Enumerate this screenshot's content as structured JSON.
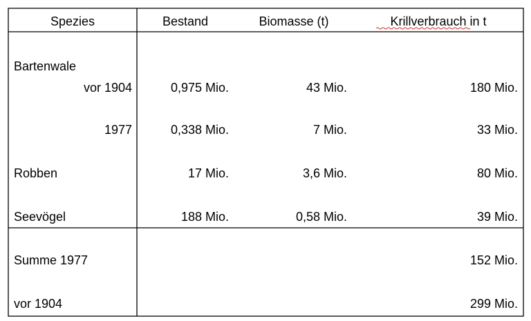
{
  "table": {
    "header": [
      "Spezies",
      "Bestand",
      "Biomasse (t)",
      "Krillverbrauch in  t"
    ],
    "rows": [
      {
        "spezies": "Bartenwale"
      },
      {
        "spezies": "vor 1904",
        "bestand": "0,975 Mio.",
        "biomasse": "43 Mio.",
        "krill": "180 Mio."
      },
      {
        "spezies": "1977",
        "bestand": "0,338 Mio.",
        "biomasse": "7 Mio.",
        "krill": "33 Mio."
      },
      {
        "spezies": "Robben",
        "bestand": "17 Mio.",
        "biomasse": "3,6 Mio.",
        "krill": "80 Mio."
      },
      {
        "spezies": "Seevögel",
        "bestand": "188 Mio.",
        "biomasse": "0,58 Mio.",
        "krill": "39 Mio."
      },
      {
        "spezies": "Summe 1977",
        "krill": "152 Mio."
      },
      {
        "spezies": "vor 1904",
        "krill": "299 Mio."
      }
    ]
  }
}
